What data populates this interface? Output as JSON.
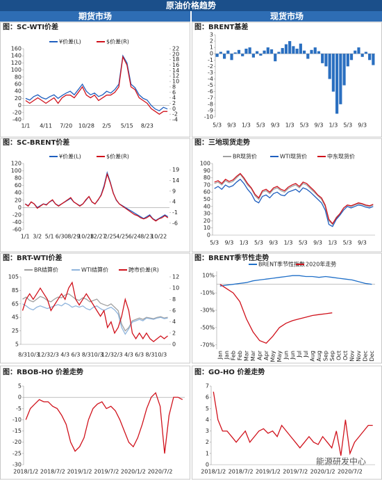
{
  "header": {
    "title": "原油价格趋势",
    "left": "期货市场",
    "right": "现货市场"
  },
  "watermark": "能源研发中心",
  "chart_data": [
    {
      "type": "line",
      "title": "图：SC-WTI价差",
      "legend": "top",
      "categories": [
        "1/1",
        null,
        null,
        null,
        null,
        "4/11",
        null,
        null,
        null,
        null,
        "7/20",
        null,
        null,
        null,
        null,
        "10/28",
        null,
        null,
        null,
        null,
        "2/5",
        null,
        null,
        null,
        null,
        "5/15",
        null,
        null,
        null,
        null,
        "8/23",
        null,
        null,
        null,
        null,
        null
      ],
      "ylim": [
        -40,
        160
      ],
      "yticks": [
        -40,
        -20,
        0,
        20,
        40,
        60,
        80,
        100,
        120,
        140,
        160
      ],
      "y2lim": [
        -4,
        22
      ],
      "y2ticks": [
        -4,
        -2,
        0,
        2,
        4,
        6,
        8,
        10,
        12,
        14,
        16,
        18,
        20,
        22
      ],
      "series": [
        {
          "name": "¥价差(L)",
          "color": "#1f5fbf",
          "values": [
            20,
            15,
            25,
            30,
            22,
            18,
            25,
            30,
            20,
            28,
            35,
            40,
            30,
            45,
            60,
            40,
            30,
            35,
            25,
            30,
            40,
            35,
            45,
            60,
            140,
            120,
            60,
            50,
            30,
            20,
            15,
            0,
            -10,
            -15,
            -5,
            -10
          ]
        },
        {
          "name": "$价差(R)",
          "color": "#d0111b",
          "axis": "y2",
          "values": [
            3,
            2,
            3,
            4,
            3,
            2,
            3,
            4,
            2,
            4,
            5,
            5,
            4,
            6,
            8,
            5,
            4,
            5,
            3,
            4,
            5,
            5,
            6,
            8,
            19,
            16,
            8,
            7,
            4,
            3,
            2,
            0,
            -1,
            -2,
            -1,
            -1
          ]
        }
      ]
    },
    {
      "type": "bar",
      "title": "图：BRENT基差",
      "color": "#2a6fc0",
      "categories": [
        "5/3",
        null,
        null,
        null,
        "9/3",
        null,
        null,
        null,
        "1/3",
        null,
        null,
        null,
        "5/3",
        null,
        null,
        null,
        "9/3",
        null,
        null,
        null,
        "1/3",
        null,
        null,
        null,
        "5/3",
        null,
        null,
        null,
        "9/3",
        null,
        null,
        null,
        "1/3",
        null,
        null,
        null,
        "5/3",
        null,
        null,
        null,
        "9/3",
        null,
        null,
        null
      ],
      "ylim": [
        -10,
        3
      ],
      "yticks": [
        3,
        2,
        1,
        0,
        -1,
        -2,
        -3,
        -4,
        -5,
        -6,
        -7,
        -8,
        -9,
        -10
      ],
      "values": [
        -0.5,
        0.3,
        -0.8,
        0.5,
        -1,
        0.2,
        0.6,
        -0.4,
        0.8,
        1,
        -0.6,
        0.4,
        -0.3,
        0.5,
        1,
        0.7,
        -1.2,
        0.3,
        0.9,
        1.5,
        2,
        1.2,
        0.8,
        1.6,
        0.5,
        -0.8,
        0.6,
        1,
        0.4,
        -1.5,
        -2,
        -4,
        -6,
        -9.5,
        -8,
        -5,
        -2,
        -1,
        0.5,
        1,
        -0.5,
        0.3,
        -1,
        -1.8
      ]
    },
    {
      "type": "line",
      "title": "图：SC-BRENT价差",
      "legend": "top",
      "categories": [
        "1/1",
        null,
        null,
        null,
        "3/2",
        null,
        null,
        null,
        "5/1",
        null,
        null,
        null,
        "6/30",
        null,
        null,
        null,
        "8/29",
        null,
        null,
        null,
        "10/28",
        null,
        null,
        null,
        "12/27",
        null,
        null,
        null,
        "2/25",
        null,
        null,
        null,
        "4/25",
        null,
        null,
        null,
        "6/24",
        null,
        null,
        null,
        "8/23",
        null,
        null,
        null,
        "10/22",
        null,
        null,
        null
      ],
      "ylim": [
        -60,
        120
      ],
      "yticks": [
        -60,
        -40,
        -20,
        0,
        20,
        40,
        60,
        80,
        100,
        120
      ],
      "y2lim": [
        -9,
        22
      ],
      "y2ticks": [
        19,
        14,
        9,
        4,
        -1,
        -6
      ],
      "series": [
        {
          "name": "¥价差(L)",
          "color": "#1f5fbf",
          "values": [
            10,
            5,
            15,
            10,
            0,
            5,
            10,
            8,
            15,
            20,
            10,
            5,
            10,
            15,
            20,
            25,
            15,
            10,
            5,
            10,
            20,
            30,
            15,
            10,
            20,
            35,
            60,
            95,
            70,
            40,
            20,
            10,
            5,
            0,
            -5,
            -10,
            -15,
            -20,
            -25,
            -30,
            -25,
            -20,
            -30,
            -35,
            -30,
            -25,
            -20,
            -25
          ]
        },
        {
          "name": "$价差(R)",
          "color": "#d0111b",
          "axis": "y2",
          "values": [
            3,
            2,
            4,
            3,
            1,
            2,
            3,
            2.5,
            4,
            5,
            3,
            2,
            3,
            4,
            5,
            6,
            4,
            3,
            2,
            3,
            5,
            6.5,
            4,
            3,
            5,
            7,
            11,
            17,
            13,
            8,
            5,
            3,
            2,
            1,
            0,
            -1,
            -2,
            -2.5,
            -3.5,
            -4,
            -3.5,
            -2.5,
            -4,
            -5,
            -4,
            -3.5,
            -2.5,
            -3.5
          ]
        }
      ]
    },
    {
      "type": "line",
      "title": "图：三地现货走势",
      "legend": "top",
      "categories": [
        "5/3",
        null,
        null,
        null,
        "9/3",
        null,
        null,
        null,
        "1/3",
        null,
        null,
        null,
        "5/3",
        null,
        null,
        null,
        "9/3",
        null,
        null,
        null,
        "1/3",
        null,
        null,
        null,
        "5/3",
        null,
        null,
        null,
        "9/3",
        null,
        null,
        null,
        "1/3",
        null,
        null,
        null,
        "5/3",
        null,
        null,
        null,
        "9/3",
        null,
        null,
        null
      ],
      "ylim": [
        0,
        100
      ],
      "yticks": [
        0,
        10,
        20,
        30,
        40,
        50,
        60,
        70,
        80,
        90,
        100
      ],
      "series": [
        {
          "name": "BR现货价",
          "color": "#a0a0a0",
          "values": [
            72,
            74,
            70,
            76,
            73,
            75,
            80,
            85,
            78,
            70,
            65,
            55,
            50,
            60,
            62,
            58,
            64,
            66,
            62,
            60,
            65,
            68,
            70,
            66,
            72,
            70,
            65,
            60,
            55,
            50,
            40,
            20,
            15,
            25,
            30,
            38,
            42,
            40,
            42,
            44,
            43,
            41,
            40,
            42
          ]
        },
        {
          "name": "WTI现货价",
          "color": "#1f5fbf",
          "values": [
            65,
            68,
            64,
            70,
            67,
            69,
            74,
            78,
            72,
            64,
            58,
            48,
            45,
            54,
            56,
            52,
            58,
            60,
            56,
            55,
            60,
            62,
            64,
            60,
            66,
            64,
            60,
            55,
            50,
            45,
            35,
            15,
            12,
            22,
            28,
            35,
            40,
            38,
            40,
            42,
            41,
            39,
            38,
            40
          ]
        },
        {
          "name": "中东现货价",
          "color": "#d0111b",
          "values": [
            74,
            76,
            72,
            78,
            75,
            77,
            82,
            86,
            80,
            72,
            66,
            57,
            52,
            62,
            64,
            60,
            66,
            68,
            64,
            62,
            67,
            70,
            72,
            68,
            74,
            72,
            67,
            62,
            56,
            52,
            42,
            22,
            16,
            24,
            30,
            38,
            42,
            41,
            43,
            45,
            44,
            42,
            41,
            43
          ]
        }
      ]
    },
    {
      "type": "line",
      "title": "图：BRT-WTI价差",
      "legend": "top",
      "categories": [
        "8/3",
        null,
        null,
        "10/3",
        null,
        null,
        "12/3",
        null,
        null,
        "2/3",
        null,
        null,
        "4/3",
        null,
        null,
        "6/3",
        null,
        null,
        "8/3",
        null,
        null,
        "10/3",
        null,
        null,
        "12/3",
        null,
        null,
        "2/3",
        null,
        null,
        "4/3",
        null,
        null,
        "6/3",
        null,
        null,
        "8/3",
        null,
        null,
        "10/3",
        null,
        null
      ],
      "ylim": [
        5,
        105
      ],
      "yticks": [
        5,
        25,
        45,
        65,
        85,
        105
      ],
      "y2lim": [
        0,
        12
      ],
      "y2ticks": [
        0,
        2,
        4,
        6,
        8,
        10,
        12
      ],
      "series": [
        {
          "name": "BR结算价",
          "color": "#a0a0a0",
          "values": [
            72,
            75,
            70,
            68,
            72,
            76,
            74,
            70,
            68,
            72,
            75,
            74,
            78,
            80,
            76,
            72,
            70,
            74,
            72,
            68,
            70,
            72,
            66,
            64,
            62,
            65,
            60,
            55,
            35,
            25,
            30,
            40,
            42,
            44,
            42,
            45,
            44,
            43,
            45,
            46,
            44,
            45
          ]
        },
        {
          "name": "WTI结算价",
          "color": "#8fb4dc",
          "values": [
            65,
            62,
            58,
            56,
            60,
            62,
            60,
            58,
            60,
            62,
            64,
            62,
            66,
            64,
            60,
            62,
            60,
            62,
            58,
            56,
            60,
            62,
            58,
            55,
            58,
            60,
            56,
            50,
            30,
            20,
            28,
            38,
            40,
            42,
            40,
            44,
            43,
            42,
            44,
            45,
            43,
            44
          ]
        },
        {
          "name": "跨市价差(R)",
          "color": "#d0111b",
          "axis": "y2",
          "values": [
            6,
            8,
            9,
            8,
            9,
            10,
            9,
            8,
            6,
            7,
            8,
            9,
            8,
            10,
            11,
            8,
            7,
            8,
            9,
            8,
            7,
            6,
            5,
            6,
            3,
            4,
            2,
            3,
            5,
            8,
            6,
            2,
            1,
            2,
            1,
            2,
            1,
            0.5,
            1,
            1.5,
            1,
            1.5
          ]
        }
      ]
    },
    {
      "type": "line",
      "title": "图：BRENT季节性走势",
      "legend": "top",
      "label_rotate": true,
      "categories": [
        "Jan",
        "Jan",
        "Feb",
        "Feb",
        "Mar",
        "Mar",
        "Apr",
        "Apr",
        "May",
        "May",
        "Jun",
        "Jun",
        "Jul",
        "Jul",
        "Aug",
        "Aug",
        "Sep",
        "Sep",
        "Oct",
        "Oct",
        "Nov",
        "Nov",
        "Dec",
        "Dec"
      ],
      "ylim": [
        -75,
        15
      ],
      "yticks": [
        {
          "value": 10,
          "label": "10%"
        },
        {
          "value": -10,
          "label": "-10%"
        },
        {
          "value": -30,
          "label": "-30%"
        },
        {
          "value": -50,
          "label": "-50%"
        },
        {
          "value": -70,
          "label": "-70%"
        }
      ],
      "series": [
        {
          "name": "BRENT季节性指数",
          "color": "#1f6fc8",
          "values": [
            -2,
            -1,
            0,
            1,
            2,
            4,
            5,
            6,
            7,
            8,
            9,
            10,
            10,
            9,
            9,
            8,
            9,
            8,
            7,
            6,
            5,
            3,
            1,
            0
          ]
        },
        {
          "name": "2020年走势",
          "color": "#d0111b",
          "values": [
            0,
            -5,
            -10,
            -20,
            -40,
            -55,
            -65,
            -68,
            -60,
            -50,
            -45,
            -42,
            -40,
            -38,
            -36,
            -35,
            -34,
            -33,
            null,
            null,
            null,
            null,
            null,
            null
          ]
        }
      ]
    },
    {
      "type": "line",
      "title": "图：RBOB-HO 价差走势",
      "categories": [
        "2018/1/2",
        null,
        null,
        null,
        null,
        null,
        "2018/7/2",
        null,
        null,
        null,
        null,
        null,
        "2019/1/2",
        null,
        null,
        null,
        null,
        null,
        "2019/7/2",
        null,
        null,
        null,
        null,
        null,
        "2020/1/2",
        null,
        null,
        null,
        null,
        null,
        "2020/7/2",
        null,
        null,
        null,
        null,
        null
      ],
      "ylim": [
        -30,
        5
      ],
      "yticks": [
        5,
        0,
        -5,
        -10,
        -15,
        -20,
        -25,
        -30
      ],
      "series": [
        {
          "color": "#d0111b",
          "values": [
            -10,
            -5,
            -3,
            -1,
            -2,
            -2,
            -4,
            -5,
            -8,
            -12,
            -20,
            -24,
            -22,
            -18,
            -10,
            -5,
            -3,
            -2,
            -5,
            -4,
            -6,
            -10,
            -15,
            -20,
            -22,
            -18,
            -12,
            -5,
            0,
            2,
            -4,
            -25,
            -8,
            0,
            0,
            -1
          ]
        }
      ]
    },
    {
      "type": "line",
      "title": "图：GO-HO 价差走势",
      "categories": [
        "2018/1/2",
        null,
        null,
        null,
        null,
        null,
        "2018/7/2",
        null,
        null,
        null,
        null,
        null,
        "2019/1/2",
        null,
        null,
        null,
        null,
        null,
        "2019/7/2",
        null,
        null,
        null,
        null,
        null,
        "2020/1/2",
        null,
        null,
        null,
        null,
        null,
        "2020/7/2",
        null,
        null,
        null,
        null,
        null
      ],
      "ylim": [
        0,
        7
      ],
      "yticks": [
        0,
        1,
        2,
        3,
        4,
        5,
        6,
        7
      ],
      "series": [
        {
          "color": "#d0111b",
          "values": [
            6.5,
            4,
            3,
            3,
            2.5,
            2,
            2.5,
            3,
            2,
            2.5,
            3,
            3.2,
            2.8,
            3,
            2.5,
            3.5,
            3,
            2.5,
            2,
            1.5,
            2,
            2.5,
            2,
            1.8,
            2.5,
            2,
            1.5,
            3,
            0.8,
            4,
            1,
            2,
            2.5,
            3,
            3.5,
            3.5
          ]
        }
      ]
    }
  ]
}
